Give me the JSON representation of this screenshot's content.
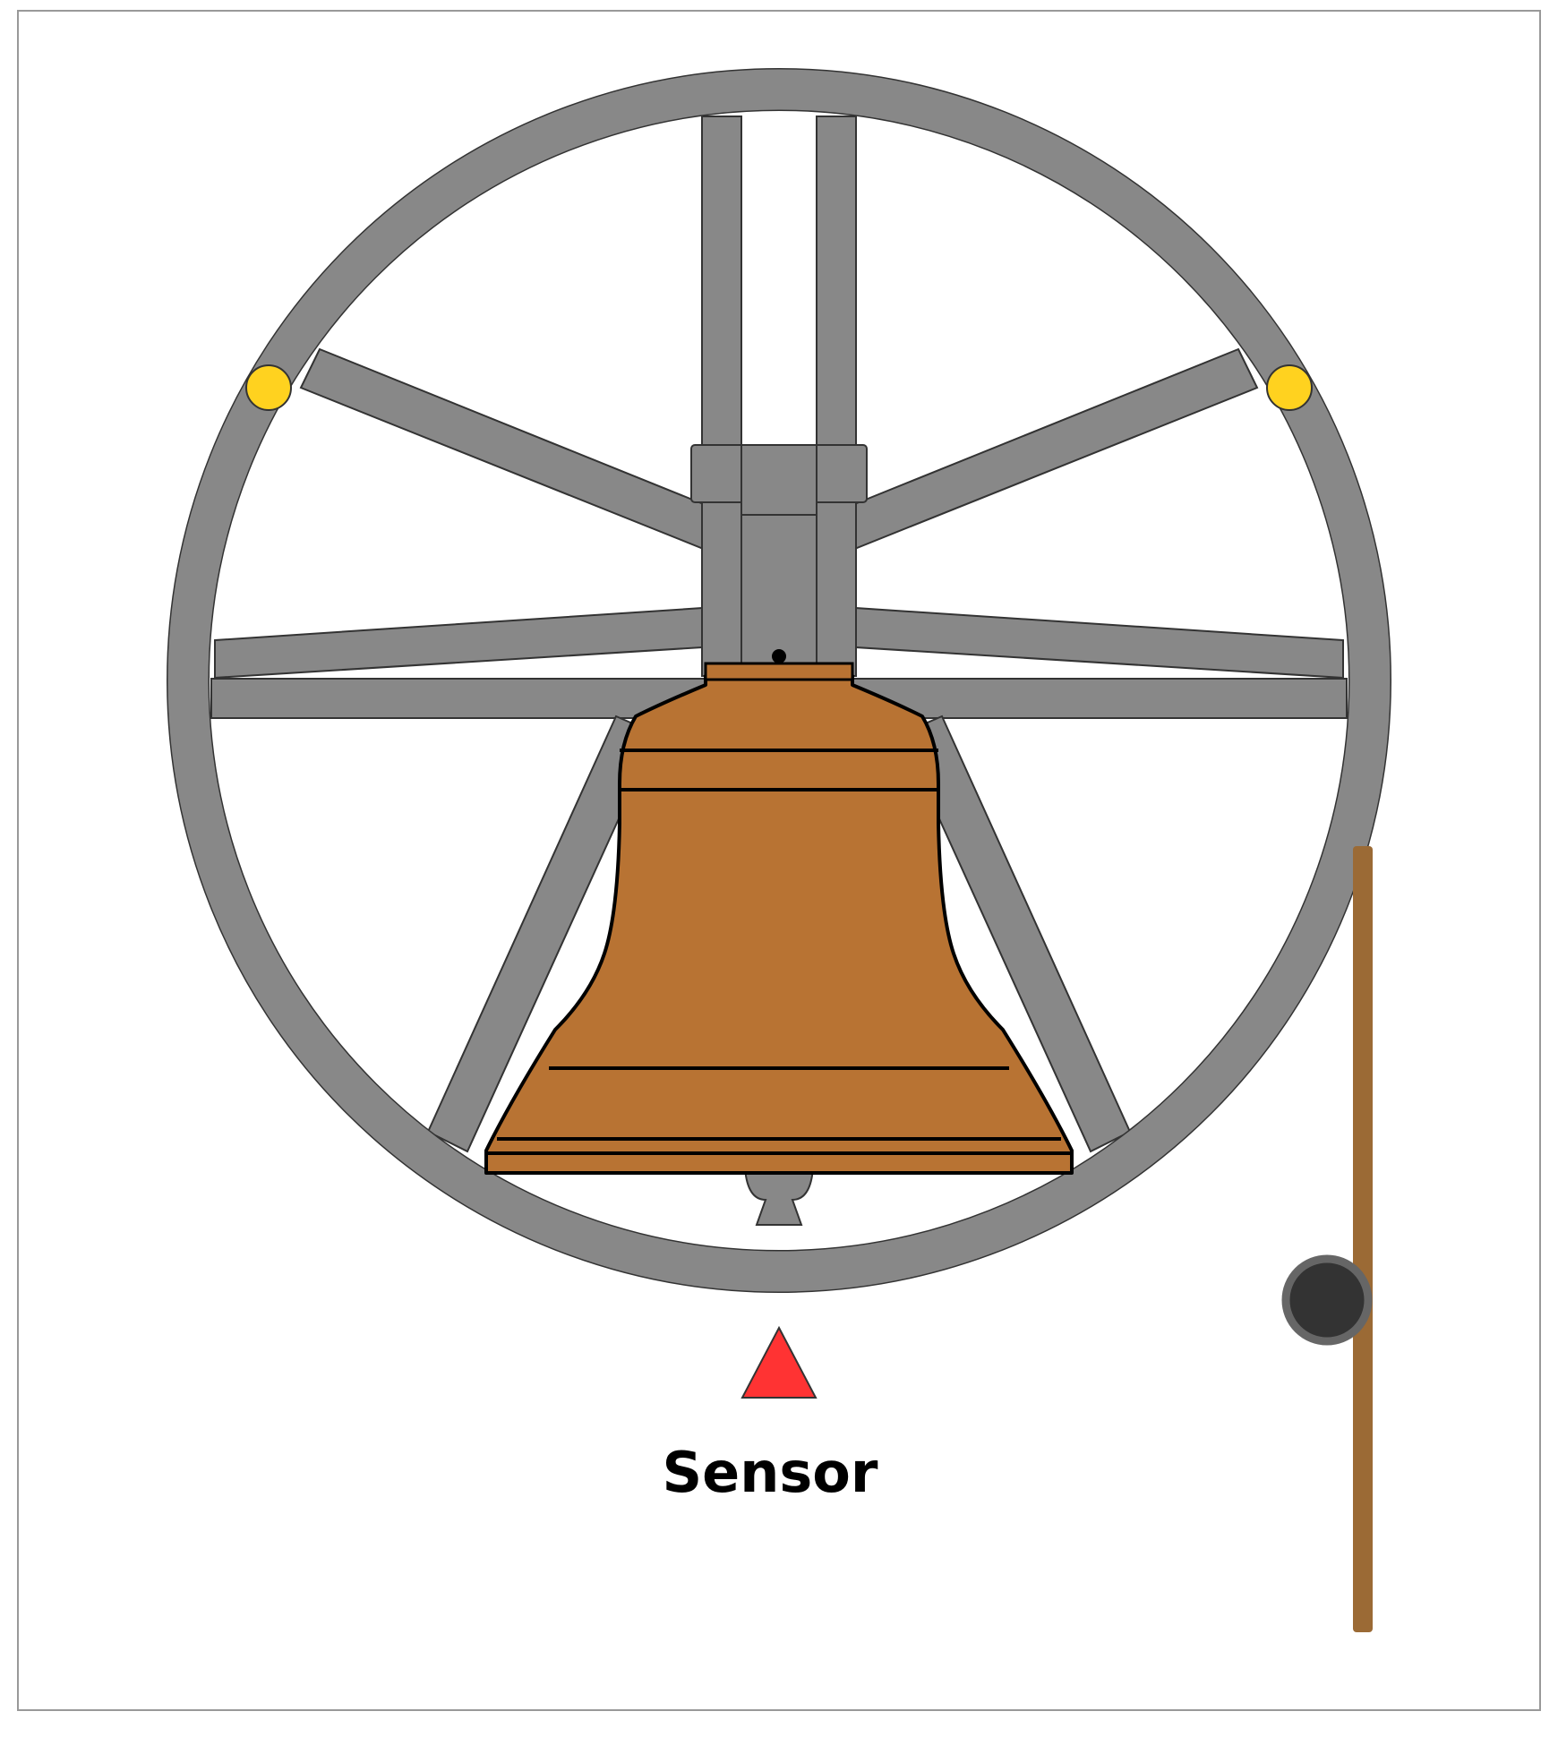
{
  "labels": {
    "sensor": "Sensor"
  },
  "colors": {
    "wheel": "#888888",
    "bell": "#b87333",
    "sensor": "#ff3333",
    "markers": "#ffd21f",
    "rope": "#9b6a35",
    "pulley": "#333333",
    "pulley_rim": "#666666",
    "outline": "#000000"
  }
}
